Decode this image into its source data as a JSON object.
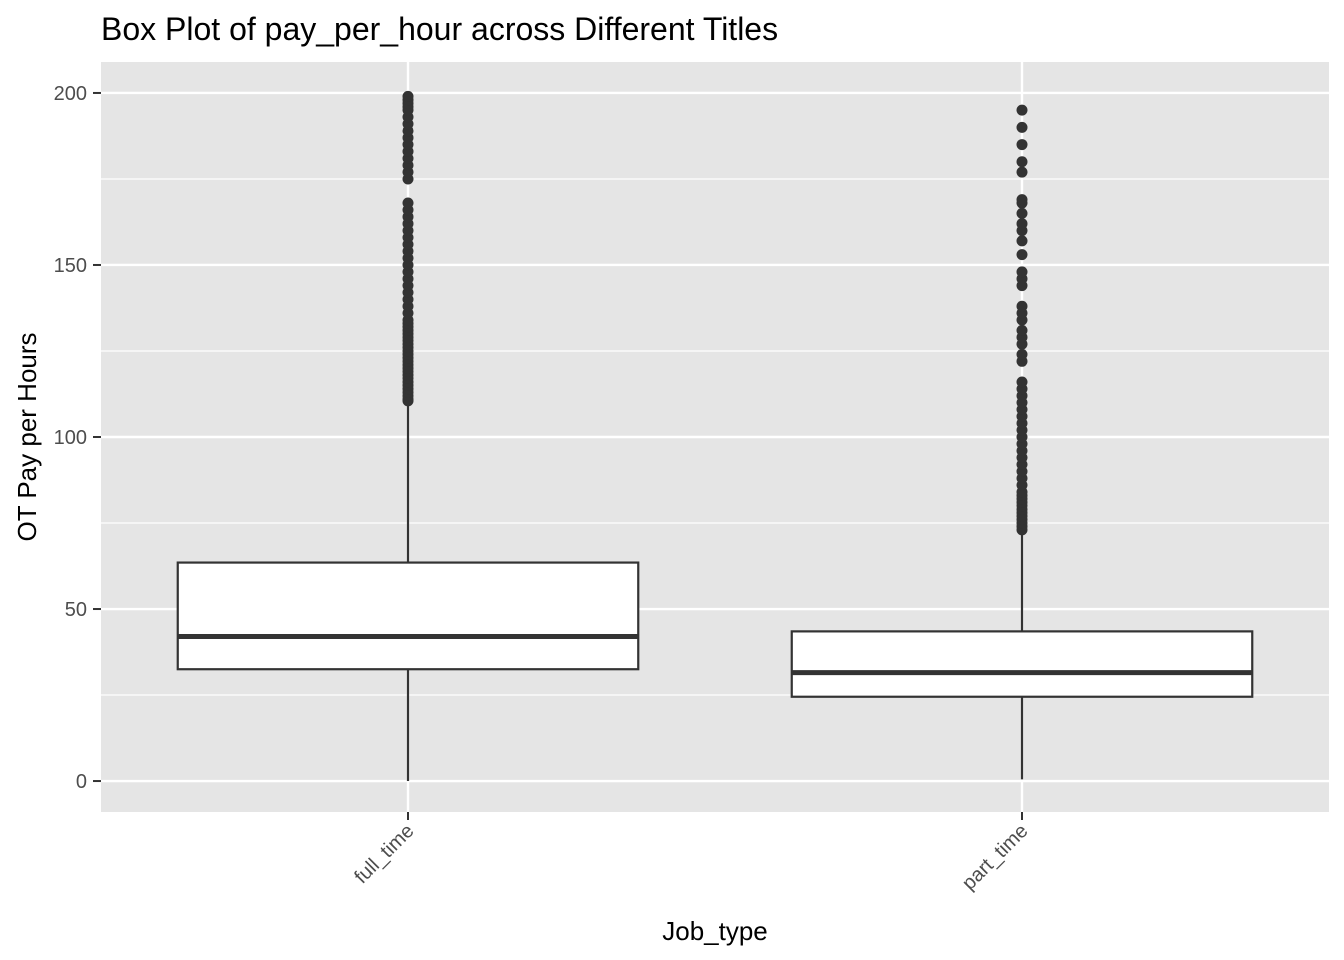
{
  "chart_data": {
    "type": "boxplot",
    "title": "Box Plot of pay_per_hour across Different Titles",
    "xlabel": "Job_type",
    "ylabel": "OT Pay per Hours",
    "ylim": [
      -9,
      209
    ],
    "yticks": [
      0,
      50,
      100,
      150,
      200
    ],
    "grid": true,
    "legend": "none",
    "categories": [
      "full_time",
      "part_time"
    ],
    "boxes": [
      {
        "category": "full_time",
        "whisker_low": 0,
        "q1": 32.5,
        "median": 42,
        "q3": 63.5,
        "whisker_high": 110,
        "outliers": [
          110.5,
          111,
          112,
          113,
          114,
          115,
          116,
          117,
          118,
          119,
          120,
          121,
          122,
          123,
          124,
          125,
          126,
          127,
          128,
          129,
          130,
          131,
          132,
          133,
          134,
          136,
          138,
          140,
          142,
          144,
          146,
          148,
          150,
          152,
          154,
          156,
          158,
          160,
          162,
          164,
          166,
          168,
          175,
          177,
          179,
          181,
          183,
          185,
          187,
          189,
          191,
          193,
          195,
          196,
          197,
          198,
          199
        ]
      },
      {
        "category": "part_time",
        "whisker_low": 0.5,
        "q1": 24.5,
        "median": 31.5,
        "q3": 43.5,
        "whisker_high": 72.5,
        "outliers": [
          73,
          74,
          75,
          76,
          77,
          78,
          79,
          80,
          81,
          82,
          83,
          84,
          86,
          88,
          90,
          92,
          94,
          96,
          98,
          100,
          102,
          104,
          106,
          108,
          110,
          112,
          114,
          116,
          122,
          124,
          127,
          129,
          131,
          134,
          136,
          138,
          144,
          146,
          148,
          153,
          157,
          160,
          162,
          165,
          168,
          169,
          177,
          180,
          185,
          190,
          195
        ]
      }
    ],
    "colors": {
      "panel": "#e5e5e5",
      "grid": "#ffffff",
      "box_fill": "#ffffff",
      "stroke": "#333333"
    }
  }
}
